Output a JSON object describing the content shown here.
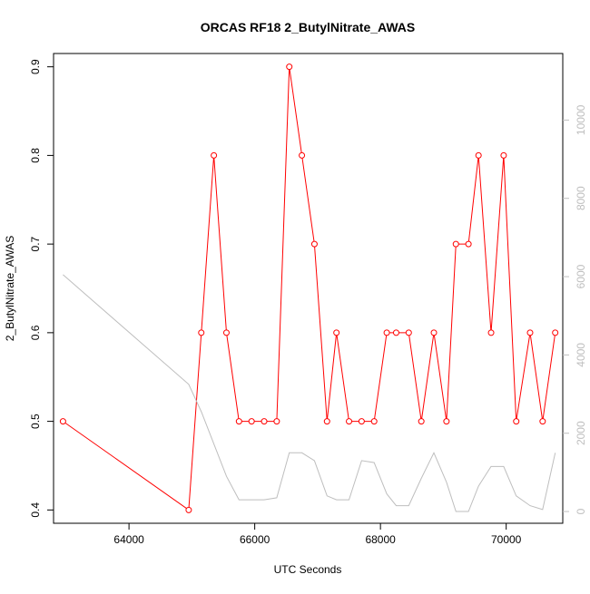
{
  "chart_data": {
    "type": "line",
    "title": "ORCAS RF18 2_ButylNitrate_AWAS",
    "xlabel": "UTC Seconds",
    "ylabel": "2_ButylNitrate_AWAS",
    "xlim": [
      62800,
      70900
    ],
    "ylim": [
      0.385,
      0.915
    ],
    "y2lim": [
      -300,
      11700
    ],
    "xticks": [
      64000,
      66000,
      68000,
      70000
    ],
    "xtick_labels": [
      "64000",
      "66000",
      "68000",
      "70000"
    ],
    "yticks": [
      0.4,
      0.5,
      0.6,
      0.7,
      0.8,
      0.9
    ],
    "ytick_labels": [
      "0.4",
      "0.5",
      "0.6",
      "0.7",
      "0.8",
      "0.9"
    ],
    "y2ticks": [
      0,
      2000,
      4000,
      6000,
      8000,
      10000
    ],
    "y2tick_labels": [
      "0",
      "2000",
      "4000",
      "6000",
      "8000",
      "10000"
    ],
    "grid": false,
    "series": [
      {
        "color": "#ff0000",
        "marker": "circle",
        "axis": "left",
        "x": [
          62950,
          64950,
          65150,
          65350,
          65550,
          65750,
          65950,
          66150,
          66350,
          66550,
          66750,
          66950,
          67150,
          67300,
          67500,
          67700,
          67900,
          68100,
          68250,
          68450,
          68650,
          68850,
          69050,
          69200,
          69400,
          69560,
          69760,
          69960,
          70160,
          70380,
          70580,
          70780
        ],
        "y": [
          0.5,
          0.4,
          0.6,
          0.8,
          0.6,
          0.5,
          0.5,
          0.5,
          0.5,
          0.9,
          0.8,
          0.7,
          0.5,
          0.6,
          0.5,
          0.5,
          0.5,
          0.6,
          0.6,
          0.6,
          0.5,
          0.6,
          0.5,
          0.7,
          0.7,
          0.8,
          0.6,
          0.8,
          0.5,
          0.6,
          0.5,
          0.6
        ]
      },
      {
        "color": "#bebebe",
        "marker": "none",
        "axis": "right",
        "x": [
          62950,
          64950,
          65150,
          65550,
          65750,
          65950,
          66150,
          66350,
          66550,
          66750,
          66950,
          67150,
          67300,
          67500,
          67700,
          67900,
          68100,
          68250,
          68450,
          68650,
          68850,
          69050,
          69200,
          69400,
          69560,
          69760,
          69960,
          70160,
          70380,
          70580,
          70780
        ],
        "y": [
          6050,
          3250,
          2550,
          900,
          300,
          300,
          300,
          350,
          1500,
          1500,
          1300,
          400,
          300,
          300,
          1300,
          1250,
          450,
          150,
          150,
          850,
          1500,
          750,
          0,
          0,
          650,
          1150,
          1150,
          400,
          150,
          50,
          1500
        ]
      }
    ]
  }
}
